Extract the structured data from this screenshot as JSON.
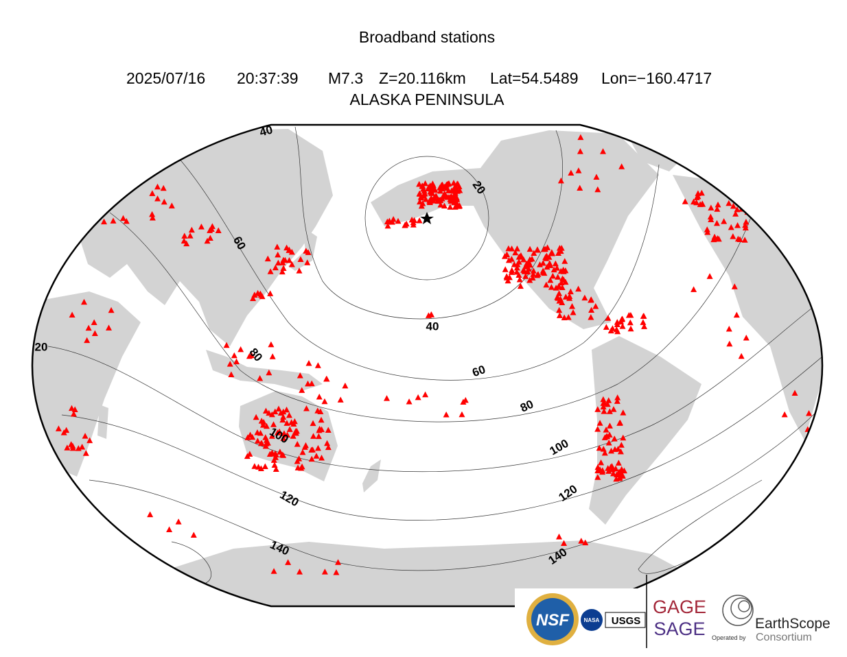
{
  "header": {
    "title": "Broadband stations",
    "event": {
      "date": "2025/07/16",
      "time": "20:37:39",
      "magnitude": "M7.3",
      "depth": "Z=20.116km",
      "lat": "Lat=54.5489",
      "lon": "Lon=−160.4717"
    },
    "region": "ALASKA PENINSULA"
  },
  "contour_labels": [
    "40",
    "60",
    "20",
    "20",
    "40",
    "60",
    "80",
    "80",
    "100",
    "100",
    "120",
    "120",
    "140",
    "140"
  ],
  "logos": {
    "nsf": "NSF",
    "nasa": "NASA",
    "usgs": "USGS",
    "gage": "GAGE",
    "sage": "SAGE",
    "operated_by": "Operated by",
    "earthscope": "EarthScope",
    "consortium": "Consortium"
  }
}
